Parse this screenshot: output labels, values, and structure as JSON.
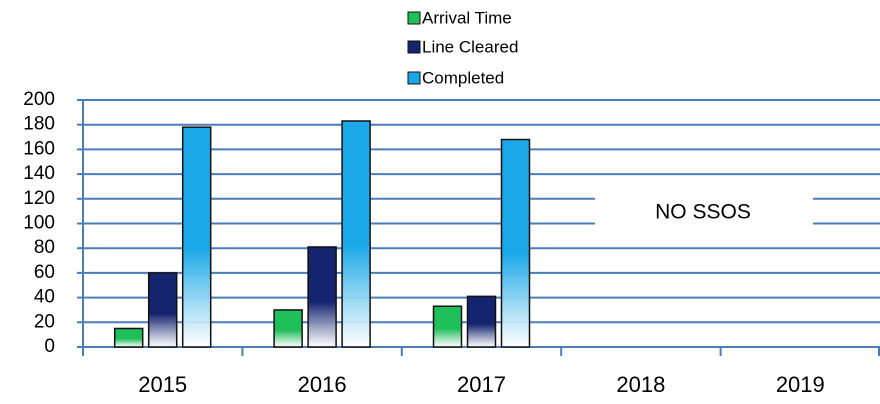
{
  "chart_data": {
    "type": "bar",
    "categories": [
      "2015",
      "2016",
      "2017",
      "2018",
      "2019"
    ],
    "series": [
      {
        "name": "Arrival Time",
        "color": "#1fbf5a",
        "values": [
          15,
          30,
          33,
          null,
          null
        ]
      },
      {
        "name": "Line Cleared",
        "color": "#14246e",
        "values": [
          60,
          81,
          41,
          null,
          null
        ]
      },
      {
        "name": "Completed",
        "color": "#1aa8e8",
        "values": [
          178,
          183,
          168,
          null,
          null
        ]
      }
    ],
    "ylim": [
      0,
      200
    ],
    "yticks": [
      0,
      20,
      40,
      60,
      80,
      100,
      120,
      140,
      160,
      180,
      200
    ],
    "grid": true,
    "legend": "top",
    "annotation": "NO SSOS"
  }
}
